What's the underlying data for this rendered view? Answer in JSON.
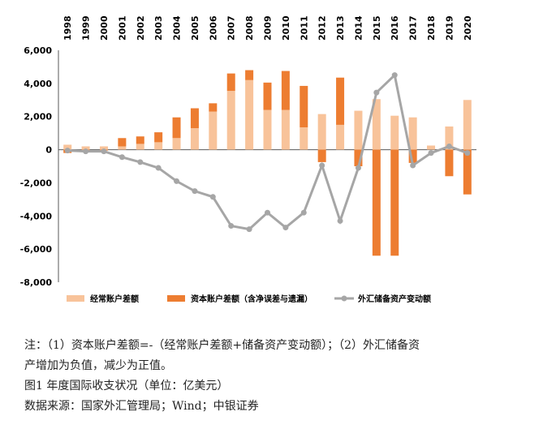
{
  "chart_data": {
    "type": "bar",
    "stacked": true,
    "categories": [
      "1998",
      "1999",
      "2000",
      "2001",
      "2002",
      "2003",
      "2004",
      "2005",
      "2006",
      "2007",
      "2008",
      "2009",
      "2010",
      "2011",
      "2012",
      "2013",
      "2014",
      "2015",
      "2016",
      "2017",
      "2018",
      "2019",
      "2020"
    ],
    "series": [
      {
        "name": "经常账户差额",
        "kind": "bar",
        "color": "#f8c39a",
        "values": [
          300,
          200,
          200,
          200,
          350,
          450,
          700,
          1300,
          2300,
          3550,
          4200,
          2400,
          2400,
          1350,
          2150,
          1500,
          2350,
          3050,
          2050,
          1950,
          250,
          1400,
          3000
        ]
      },
      {
        "name": "资本账户差额（含净误差与遗漏）",
        "kind": "bar",
        "color": "#ed7d31",
        "values": [
          -200,
          -50,
          -50,
          500,
          450,
          600,
          1250,
          1200,
          500,
          1050,
          600,
          1650,
          2350,
          2500,
          -750,
          2850,
          -1000,
          -6400,
          -6400,
          -800,
          0,
          -1600,
          -2700
        ]
      },
      {
        "name": "外汇储备资产变动额",
        "kind": "line",
        "color": "#a6a6a6",
        "values": [
          -50,
          -100,
          -100,
          -450,
          -750,
          -1100,
          -1900,
          -2500,
          -2850,
          -4600,
          -4800,
          -3800,
          -4700,
          -3800,
          -950,
          -4300,
          -1100,
          3450,
          4500,
          -950,
          -200,
          200,
          -200
        ]
      }
    ],
    "ylim": [
      -8000,
      6000
    ],
    "yticks": [
      "6,000",
      "4,000",
      "2,000",
      "0",
      "-2,000",
      "-4,000",
      "-6,000",
      "-8,000"
    ],
    "legend_position": "bottom"
  },
  "notes": {
    "line1": "注：（1）资本账户差额=-（经常账户差额+储备资产变动额）；（2）外汇储备资",
    "line2": "产增加为负值，减少为正值。",
    "caption": "图1  年度国际收支状况（单位：亿美元）",
    "source": "数据来源：国家外汇管理局；Wind；中银证券"
  }
}
